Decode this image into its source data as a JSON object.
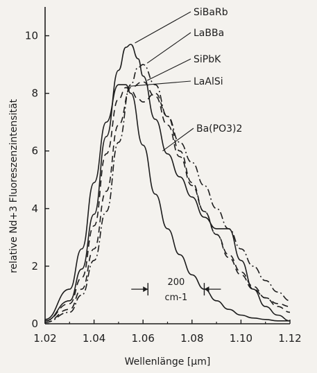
{
  "chart_data": {
    "type": "line",
    "xlabel": "Wellenlänge [μm]",
    "ylabel": "relative Nd+3 Fluoreszenzintensität",
    "xlim": [
      1.02,
      1.12
    ],
    "ylim": [
      0,
      11
    ],
    "x_ticks": [
      "1.02",
      "1.04",
      "1.06",
      "1.08",
      "1.10",
      "1.12"
    ],
    "y_ticks": [
      "0",
      "2",
      "4",
      "6",
      "8",
      "10"
    ],
    "grid": false,
    "legend": "inline labels with leader lines, top-right",
    "series": [
      {
        "name": "SiBaRb",
        "style": "solid",
        "x": [
          1.02,
          1.03,
          1.035,
          1.04,
          1.045,
          1.05,
          1.053,
          1.055,
          1.058,
          1.06,
          1.065,
          1.07,
          1.075,
          1.08,
          1.085,
          1.09,
          1.095,
          1.1,
          1.105,
          1.11,
          1.115,
          1.12
        ],
        "y": [
          0.1,
          0.8,
          1.9,
          3.8,
          6.5,
          8.8,
          9.6,
          9.7,
          9.2,
          8.6,
          7.1,
          5.9,
          5.1,
          4.4,
          3.7,
          3.3,
          3.3,
          2.2,
          1.2,
          0.6,
          0.3,
          0.1
        ]
      },
      {
        "name": "LaBBa",
        "style": "dash-dot",
        "x": [
          1.02,
          1.03,
          1.035,
          1.04,
          1.045,
          1.05,
          1.055,
          1.058,
          1.06,
          1.065,
          1.07,
          1.075,
          1.08,
          1.085,
          1.09,
          1.095,
          1.1,
          1.105,
          1.11,
          1.115,
          1.12
        ],
        "y": [
          0.05,
          0.4,
          1.0,
          2.2,
          3.9,
          6.3,
          8.3,
          8.9,
          9.0,
          8.3,
          7.2,
          6.3,
          5.6,
          4.8,
          4.0,
          3.3,
          2.6,
          2.0,
          1.5,
          1.1,
          0.8
        ]
      },
      {
        "name": "SiPbK",
        "style": "dashed",
        "x": [
          1.02,
          1.03,
          1.035,
          1.04,
          1.045,
          1.05,
          1.055,
          1.06,
          1.065,
          1.07,
          1.075,
          1.08,
          1.085,
          1.09,
          1.095,
          1.1,
          1.105,
          1.11,
          1.115,
          1.12
        ],
        "y": [
          0.05,
          0.5,
          1.2,
          2.6,
          4.6,
          6.9,
          8.2,
          8.4,
          7.9,
          6.9,
          5.8,
          4.8,
          3.9,
          3.1,
          2.3,
          1.7,
          1.2,
          0.9,
          0.7,
          0.6
        ]
      },
      {
        "name": "LaAlSi",
        "style": "dashed",
        "x": [
          1.02,
          1.03,
          1.035,
          1.04,
          1.045,
          1.05,
          1.053,
          1.055,
          1.058,
          1.06,
          1.065,
          1.07,
          1.075,
          1.08,
          1.085,
          1.09,
          1.095,
          1.1,
          1.105,
          1.11,
          1.115,
          1.12
        ],
        "y": [
          0.1,
          0.7,
          1.6,
          3.4,
          5.9,
          7.8,
          8.2,
          8.1,
          7.8,
          7.7,
          8.0,
          7.2,
          6.0,
          4.9,
          3.9,
          3.1,
          2.4,
          1.8,
          1.3,
          0.9,
          0.6,
          0.4
        ]
      },
      {
        "name": "Ba(PO3)2",
        "style": "solid",
        "x": [
          1.02,
          1.03,
          1.035,
          1.04,
          1.045,
          1.05,
          1.053,
          1.055,
          1.06,
          1.065,
          1.07,
          1.075,
          1.08,
          1.085,
          1.09,
          1.095,
          1.1,
          1.105,
          1.11,
          1.115,
          1.12
        ],
        "y": [
          0.15,
          1.2,
          2.6,
          4.9,
          7.0,
          8.3,
          8.3,
          8.0,
          6.2,
          4.5,
          3.3,
          2.4,
          1.7,
          1.2,
          0.8,
          0.5,
          0.3,
          0.2,
          0.15,
          0.1,
          0.1
        ]
      }
    ],
    "labels": [
      {
        "text": "SiBaRb",
        "series": "SiBaRb"
      },
      {
        "text": "LaBBa",
        "series": "LaBBa"
      },
      {
        "text": "SiPbK",
        "series": "SiPbK"
      },
      {
        "text": "LaAlSi",
        "series": "LaAlSi"
      },
      {
        "text": "Ba(PO3)2",
        "series": "Ba(PO3)2"
      }
    ],
    "annotation": {
      "text_line1": "200",
      "text_line2": "cm-1",
      "x_range": [
        1.062,
        1.085
      ],
      "y": 1.2
    }
  }
}
